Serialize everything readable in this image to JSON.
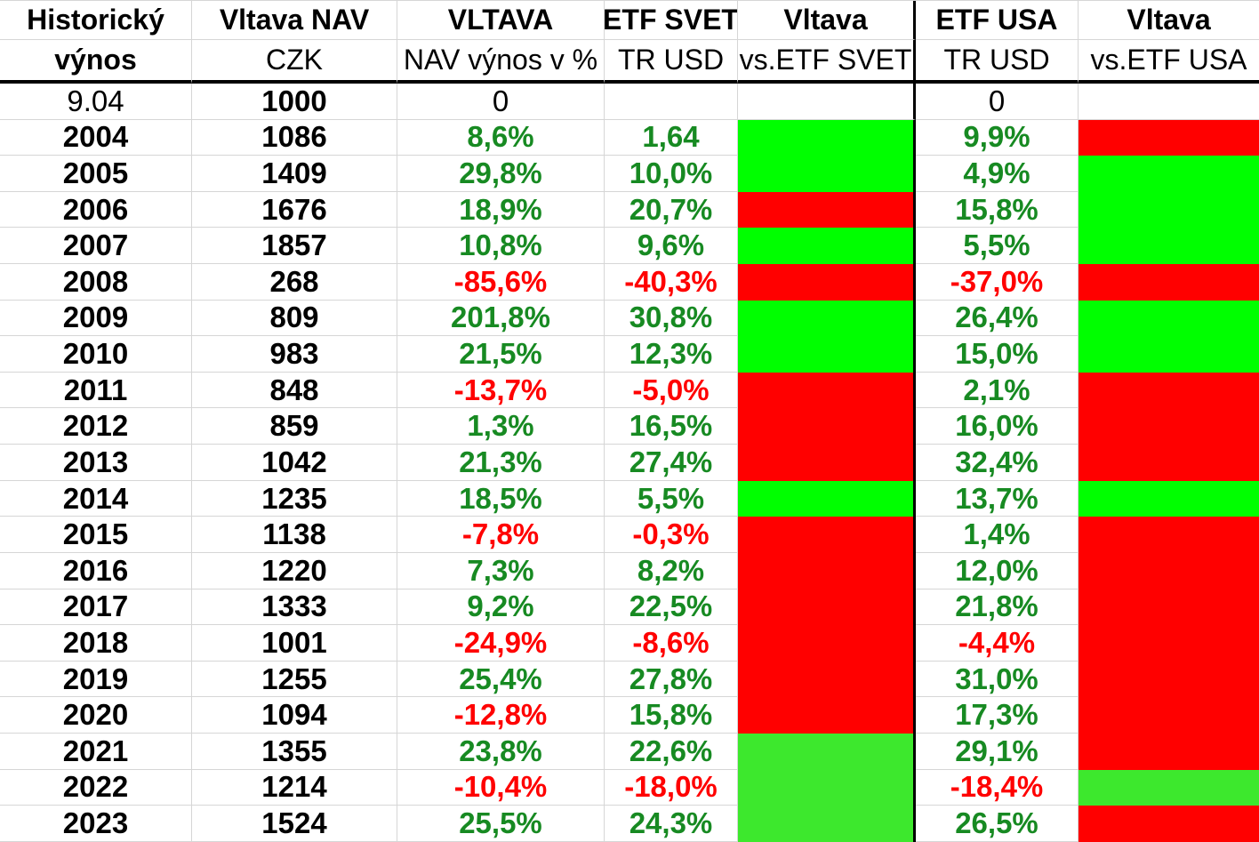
{
  "header": {
    "row1": [
      "Historický",
      "Vltava NAV",
      "VLTAVA",
      "ETF SVET",
      "Vltava",
      "ETF USA",
      "Vltava"
    ],
    "row2": [
      "výnos",
      "CZK",
      "NAV výnos v %",
      "TR USD",
      "vs.ETF SVET",
      "TR USD",
      "vs.ETF USA"
    ]
  },
  "colors": {
    "positive_text": "#178A22",
    "negative_text": "#FF0000",
    "neutral_text": "#000000",
    "fill_green": "#00FF00",
    "fill_light_green": "#3DE82D",
    "fill_red": "#FF0000",
    "gridline": "#D6D6D6",
    "divider": "#000000"
  },
  "table": {
    "rows": [
      {
        "year": "9.04",
        "year_bold": false,
        "nav": "1000",
        "vltava": "0",
        "vltava_c": "plain",
        "svet": "",
        "svet_c": "plain",
        "vs_svet": "none",
        "usa": "0",
        "usa_c": "plain",
        "vs_usa": "none"
      },
      {
        "year": "2004",
        "year_bold": true,
        "nav": "1086",
        "vltava": "8,6%",
        "vltava_c": "pos",
        "svet": "1,64",
        "svet_c": "pos",
        "vs_svet": "green",
        "usa": "9,9%",
        "usa_c": "pos",
        "vs_usa": "red"
      },
      {
        "year": "2005",
        "year_bold": true,
        "nav": "1409",
        "vltava": "29,8%",
        "vltava_c": "pos",
        "svet": "10,0%",
        "svet_c": "pos",
        "vs_svet": "green",
        "usa": "4,9%",
        "usa_c": "pos",
        "vs_usa": "green"
      },
      {
        "year": "2006",
        "year_bold": true,
        "nav": "1676",
        "vltava": "18,9%",
        "vltava_c": "pos",
        "svet": "20,7%",
        "svet_c": "pos",
        "vs_svet": "red",
        "usa": "15,8%",
        "usa_c": "pos",
        "vs_usa": "green"
      },
      {
        "year": "2007",
        "year_bold": true,
        "nav": "1857",
        "vltava": "10,8%",
        "vltava_c": "pos",
        "svet": "9,6%",
        "svet_c": "pos",
        "vs_svet": "green",
        "usa": "5,5%",
        "usa_c": "pos",
        "vs_usa": "green"
      },
      {
        "year": "2008",
        "year_bold": true,
        "nav": "268",
        "vltava": "-85,6%",
        "vltava_c": "neg",
        "svet": "-40,3%",
        "svet_c": "neg",
        "vs_svet": "red",
        "usa": "-37,0%",
        "usa_c": "neg",
        "vs_usa": "red"
      },
      {
        "year": "2009",
        "year_bold": true,
        "nav": "809",
        "vltava": "201,8%",
        "vltava_c": "pos",
        "svet": "30,8%",
        "svet_c": "pos",
        "vs_svet": "green",
        "usa": "26,4%",
        "usa_c": "pos",
        "vs_usa": "green"
      },
      {
        "year": "2010",
        "year_bold": true,
        "nav": "983",
        "vltava": "21,5%",
        "vltava_c": "pos",
        "svet": "12,3%",
        "svet_c": "pos",
        "vs_svet": "green",
        "usa": "15,0%",
        "usa_c": "pos",
        "vs_usa": "green"
      },
      {
        "year": "2011",
        "year_bold": true,
        "nav": "848",
        "vltava": "-13,7%",
        "vltava_c": "neg",
        "svet": "-5,0%",
        "svet_c": "neg",
        "vs_svet": "red",
        "usa": "2,1%",
        "usa_c": "pos",
        "vs_usa": "red"
      },
      {
        "year": "2012",
        "year_bold": true,
        "nav": "859",
        "vltava": "1,3%",
        "vltava_c": "pos",
        "svet": "16,5%",
        "svet_c": "pos",
        "vs_svet": "red",
        "usa": "16,0%",
        "usa_c": "pos",
        "vs_usa": "red"
      },
      {
        "year": "2013",
        "year_bold": true,
        "nav": "1042",
        "vltava": "21,3%",
        "vltava_c": "pos",
        "svet": "27,4%",
        "svet_c": "pos",
        "vs_svet": "red",
        "usa": "32,4%",
        "usa_c": "pos",
        "vs_usa": "red"
      },
      {
        "year": "2014",
        "year_bold": true,
        "nav": "1235",
        "vltava": "18,5%",
        "vltava_c": "pos",
        "svet": "5,5%",
        "svet_c": "pos",
        "vs_svet": "green",
        "usa": "13,7%",
        "usa_c": "pos",
        "vs_usa": "green"
      },
      {
        "year": "2015",
        "year_bold": true,
        "nav": "1138",
        "vltava": "-7,8%",
        "vltava_c": "neg",
        "svet": "-0,3%",
        "svet_c": "neg",
        "vs_svet": "red",
        "usa": "1,4%",
        "usa_c": "pos",
        "vs_usa": "red"
      },
      {
        "year": "2016",
        "year_bold": true,
        "nav": "1220",
        "vltava": "7,3%",
        "vltava_c": "pos",
        "svet": "8,2%",
        "svet_c": "pos",
        "vs_svet": "red",
        "usa": "12,0%",
        "usa_c": "pos",
        "vs_usa": "red"
      },
      {
        "year": "2017",
        "year_bold": true,
        "nav": "1333",
        "vltava": "9,2%",
        "vltava_c": "pos",
        "svet": "22,5%",
        "svet_c": "pos",
        "vs_svet": "red",
        "usa": "21,8%",
        "usa_c": "pos",
        "vs_usa": "red"
      },
      {
        "year": "2018",
        "year_bold": true,
        "nav": "1001",
        "vltava": "-24,9%",
        "vltava_c": "neg",
        "svet": "-8,6%",
        "svet_c": "neg",
        "vs_svet": "red",
        "usa": "-4,4%",
        "usa_c": "neg",
        "vs_usa": "red"
      },
      {
        "year": "2019",
        "year_bold": true,
        "nav": "1255",
        "vltava": "25,4%",
        "vltava_c": "pos",
        "svet": "27,8%",
        "svet_c": "pos",
        "vs_svet": "red",
        "usa": "31,0%",
        "usa_c": "pos",
        "vs_usa": "red"
      },
      {
        "year": "2020",
        "year_bold": true,
        "nav": "1094",
        "vltava": "-12,8%",
        "vltava_c": "neg",
        "svet": "15,8%",
        "svet_c": "pos",
        "vs_svet": "red",
        "usa": "17,3%",
        "usa_c": "pos",
        "vs_usa": "red"
      },
      {
        "year": "2021",
        "year_bold": true,
        "nav": "1355",
        "vltava": "23,8%",
        "vltava_c": "pos",
        "svet": "22,6%",
        "svet_c": "pos",
        "vs_svet": "lightgreen",
        "usa": "29,1%",
        "usa_c": "pos",
        "vs_usa": "red"
      },
      {
        "year": "2022",
        "year_bold": true,
        "nav": "1214",
        "vltava": "-10,4%",
        "vltava_c": "neg",
        "svet": "-18,0%",
        "svet_c": "neg",
        "vs_svet": "lightgreen",
        "usa": "-18,4%",
        "usa_c": "neg",
        "vs_usa": "lightgreen"
      },
      {
        "year": "2023",
        "year_bold": true,
        "nav": "1524",
        "vltava": "25,5%",
        "vltava_c": "pos",
        "svet": "24,3%",
        "svet_c": "pos",
        "vs_svet": "lightgreen",
        "usa": "26,5%",
        "usa_c": "pos",
        "vs_usa": "red"
      }
    ]
  }
}
